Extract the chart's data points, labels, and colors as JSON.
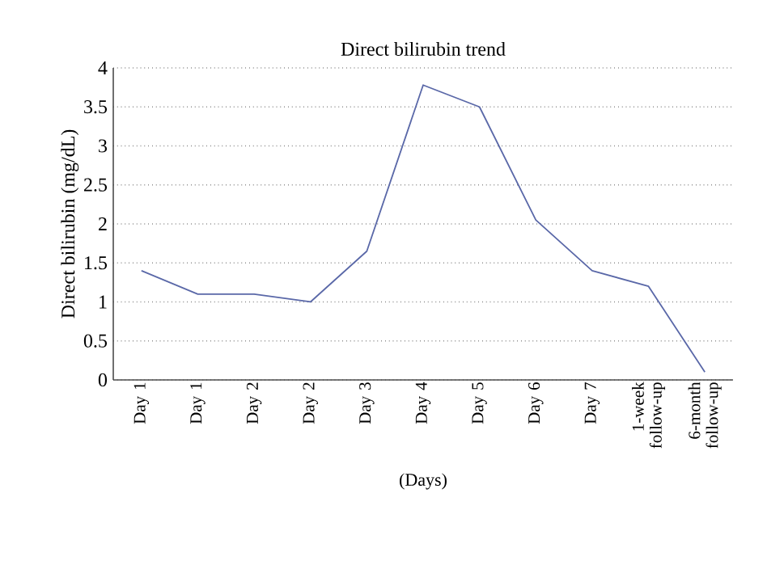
{
  "chart_data": {
    "type": "line",
    "title": "Direct bilirubin trend",
    "xlabel": "(Days)",
    "ylabel": "Direct bilirubin (mg/dL)",
    "categories": [
      "Day 1",
      "Day 1",
      "Day 2",
      "Day 2",
      "Day 3",
      "Day 4",
      "Day 5",
      "Day 6",
      "Day 7",
      "1-week follow-up",
      "6-month follow-up"
    ],
    "series": [
      {
        "color": "#5a68a8",
        "values": [
          1.4,
          1.1,
          1.1,
          1.0,
          1.65,
          3.78,
          3.5,
          2.05,
          1.4,
          1.2,
          0.1
        ]
      }
    ],
    "ylim": [
      0,
      4
    ],
    "yticks": [
      0,
      0.5,
      1,
      1.5,
      2,
      2.5,
      3,
      3.5,
      4
    ],
    "grid": "y",
    "legend": false,
    "marker": "none",
    "line_style": "solid"
  }
}
